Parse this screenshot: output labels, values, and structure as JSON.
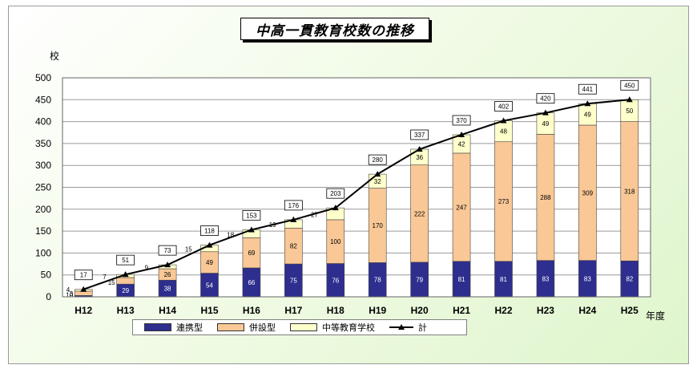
{
  "chart_data": {
    "type": "bar",
    "title": "中高一貫教育校数の推移",
    "ylabel": "校",
    "xlabel": "年度",
    "ylim": [
      0,
      500
    ],
    "yticks": [
      0,
      50,
      100,
      150,
      200,
      250,
      300,
      350,
      400,
      450,
      500
    ],
    "categories": [
      "H12",
      "H13",
      "H14",
      "H15",
      "H16",
      "H17",
      "H18",
      "H19",
      "H20",
      "H21",
      "H22",
      "H23",
      "H24",
      "H25"
    ],
    "series": [
      {
        "name": "連携型",
        "color": "#2e2e8f",
        "values": [
          3,
          29,
          38,
          54,
          66,
          75,
          76,
          78,
          79,
          81,
          81,
          83,
          83,
          82
        ]
      },
      {
        "name": "併設型",
        "color": "#f9c896",
        "values": [
          10,
          15,
          26,
          49,
          69,
          82,
          100,
          170,
          222,
          247,
          273,
          288,
          309,
          318
        ]
      },
      {
        "name": "中等教育学校",
        "color": "#ffffcc",
        "values": [
          4,
          7,
          9,
          15,
          18,
          19,
          27,
          32,
          36,
          42,
          48,
          49,
          49,
          50
        ]
      }
    ],
    "total": {
      "name": "計",
      "values": [
        17,
        51,
        73,
        118,
        153,
        176,
        203,
        280,
        337,
        370,
        402,
        420,
        441,
        450
      ]
    },
    "grid": true,
    "legend_position": "bottom"
  }
}
